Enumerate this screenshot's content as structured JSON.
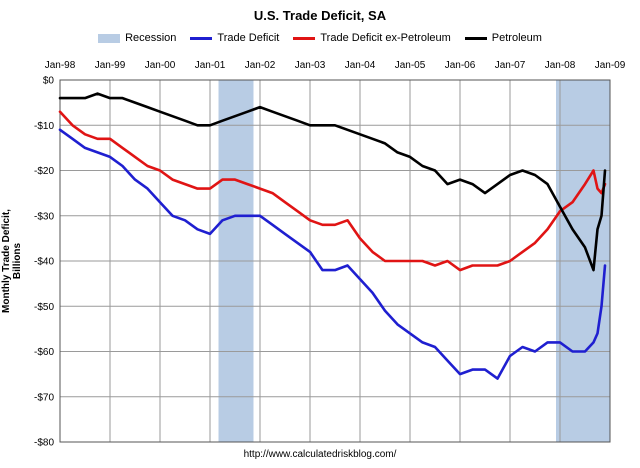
{
  "chart_data": {
    "type": "line",
    "title": "U.S. Trade Deficit, SA",
    "xlabel": "",
    "ylabel": "Monthly Trade Deficit, Billions",
    "source": "http://www.calculatedriskblog.com/",
    "xlim": [
      1998.0,
      2009.0
    ],
    "ylim": [
      -80,
      0
    ],
    "x_tick_labels": [
      "Jan-98",
      "Jan-99",
      "Jan-00",
      "Jan-01",
      "Jan-02",
      "Jan-03",
      "Jan-04",
      "Jan-05",
      "Jan-06",
      "Jan-07",
      "Jan-08",
      "Jan-09"
    ],
    "y_tick_labels": [
      "$0",
      "-$10",
      "-$20",
      "-$30",
      "-$40",
      "-$50",
      "-$60",
      "-$70",
      "-$80"
    ],
    "grid": true,
    "legend_position": "top",
    "recessions": [
      {
        "name": "Recession",
        "start": 2001.17,
        "end": 2001.87
      },
      {
        "name": "Recession",
        "start": 2007.92,
        "end": 2009.0
      }
    ],
    "series": [
      {
        "name": "Trade Deficit",
        "color": "#1f1fd0",
        "points": [
          [
            1998.0,
            -11
          ],
          [
            1998.25,
            -13
          ],
          [
            1998.5,
            -15
          ],
          [
            1998.75,
            -16
          ],
          [
            1999.0,
            -17
          ],
          [
            1999.25,
            -19
          ],
          [
            1999.5,
            -22
          ],
          [
            1999.75,
            -24
          ],
          [
            2000.0,
            -27
          ],
          [
            2000.25,
            -30
          ],
          [
            2000.5,
            -31
          ],
          [
            2000.75,
            -33
          ],
          [
            2001.0,
            -34
          ],
          [
            2001.25,
            -31
          ],
          [
            2001.5,
            -30
          ],
          [
            2001.75,
            -30
          ],
          [
            2002.0,
            -30
          ],
          [
            2002.25,
            -32
          ],
          [
            2002.5,
            -34
          ],
          [
            2002.75,
            -36
          ],
          [
            2003.0,
            -38
          ],
          [
            2003.25,
            -42
          ],
          [
            2003.5,
            -42
          ],
          [
            2003.75,
            -41
          ],
          [
            2004.0,
            -44
          ],
          [
            2004.25,
            -47
          ],
          [
            2004.5,
            -51
          ],
          [
            2004.75,
            -54
          ],
          [
            2005.0,
            -56
          ],
          [
            2005.25,
            -58
          ],
          [
            2005.5,
            -59
          ],
          [
            2005.75,
            -62
          ],
          [
            2006.0,
            -65
          ],
          [
            2006.25,
            -64
          ],
          [
            2006.5,
            -64
          ],
          [
            2006.75,
            -66
          ],
          [
            2007.0,
            -61
          ],
          [
            2007.25,
            -59
          ],
          [
            2007.5,
            -60
          ],
          [
            2007.75,
            -58
          ],
          [
            2008.0,
            -58
          ],
          [
            2008.25,
            -60
          ],
          [
            2008.5,
            -60
          ],
          [
            2008.67,
            -58
          ],
          [
            2008.75,
            -56
          ],
          [
            2008.83,
            -50
          ],
          [
            2008.9,
            -41
          ]
        ]
      },
      {
        "name": "Trade Deficit ex-Petroleum",
        "color": "#e01414",
        "points": [
          [
            1998.0,
            -7
          ],
          [
            1998.25,
            -10
          ],
          [
            1998.5,
            -12
          ],
          [
            1998.75,
            -13
          ],
          [
            1999.0,
            -13
          ],
          [
            1999.25,
            -15
          ],
          [
            1999.5,
            -17
          ],
          [
            1999.75,
            -19
          ],
          [
            2000.0,
            -20
          ],
          [
            2000.25,
            -22
          ],
          [
            2000.5,
            -23
          ],
          [
            2000.75,
            -24
          ],
          [
            2001.0,
            -24
          ],
          [
            2001.25,
            -22
          ],
          [
            2001.5,
            -22
          ],
          [
            2001.75,
            -23
          ],
          [
            2002.0,
            -24
          ],
          [
            2002.25,
            -25
          ],
          [
            2002.5,
            -27
          ],
          [
            2002.75,
            -29
          ],
          [
            2003.0,
            -31
          ],
          [
            2003.25,
            -32
          ],
          [
            2003.5,
            -32
          ],
          [
            2003.75,
            -31
          ],
          [
            2004.0,
            -35
          ],
          [
            2004.25,
            -38
          ],
          [
            2004.5,
            -40
          ],
          [
            2004.75,
            -40
          ],
          [
            2005.0,
            -40
          ],
          [
            2005.25,
            -40
          ],
          [
            2005.5,
            -41
          ],
          [
            2005.75,
            -40
          ],
          [
            2006.0,
            -42
          ],
          [
            2006.25,
            -41
          ],
          [
            2006.5,
            -41
          ],
          [
            2006.75,
            -41
          ],
          [
            2007.0,
            -40
          ],
          [
            2007.25,
            -38
          ],
          [
            2007.5,
            -36
          ],
          [
            2007.75,
            -33
          ],
          [
            2008.0,
            -29
          ],
          [
            2008.25,
            -27
          ],
          [
            2008.5,
            -23
          ],
          [
            2008.67,
            -20
          ],
          [
            2008.75,
            -24
          ],
          [
            2008.83,
            -25
          ],
          [
            2008.9,
            -23
          ]
        ]
      },
      {
        "name": "Petroleum",
        "color": "#000000",
        "points": [
          [
            1998.0,
            -4
          ],
          [
            1998.25,
            -4
          ],
          [
            1998.5,
            -4
          ],
          [
            1998.75,
            -3
          ],
          [
            1999.0,
            -4
          ],
          [
            1999.25,
            -4
          ],
          [
            1999.5,
            -5
          ],
          [
            1999.75,
            -6
          ],
          [
            2000.0,
            -7
          ],
          [
            2000.25,
            -8
          ],
          [
            2000.5,
            -9
          ],
          [
            2000.75,
            -10
          ],
          [
            2001.0,
            -10
          ],
          [
            2001.25,
            -9
          ],
          [
            2001.5,
            -8
          ],
          [
            2001.75,
            -7
          ],
          [
            2002.0,
            -6
          ],
          [
            2002.25,
            -7
          ],
          [
            2002.5,
            -8
          ],
          [
            2002.75,
            -9
          ],
          [
            2003.0,
            -10
          ],
          [
            2003.25,
            -10
          ],
          [
            2003.5,
            -10
          ],
          [
            2003.75,
            -11
          ],
          [
            2004.0,
            -12
          ],
          [
            2004.25,
            -13
          ],
          [
            2004.5,
            -14
          ],
          [
            2004.75,
            -16
          ],
          [
            2005.0,
            -17
          ],
          [
            2005.25,
            -19
          ],
          [
            2005.5,
            -20
          ],
          [
            2005.75,
            -23
          ],
          [
            2006.0,
            -22
          ],
          [
            2006.25,
            -23
          ],
          [
            2006.5,
            -25
          ],
          [
            2006.75,
            -23
          ],
          [
            2007.0,
            -21
          ],
          [
            2007.25,
            -20
          ],
          [
            2007.5,
            -21
          ],
          [
            2007.75,
            -23
          ],
          [
            2008.0,
            -28
          ],
          [
            2008.25,
            -33
          ],
          [
            2008.5,
            -37
          ],
          [
            2008.67,
            -42
          ],
          [
            2008.75,
            -33
          ],
          [
            2008.83,
            -30
          ],
          [
            2008.9,
            -20
          ]
        ]
      }
    ]
  }
}
